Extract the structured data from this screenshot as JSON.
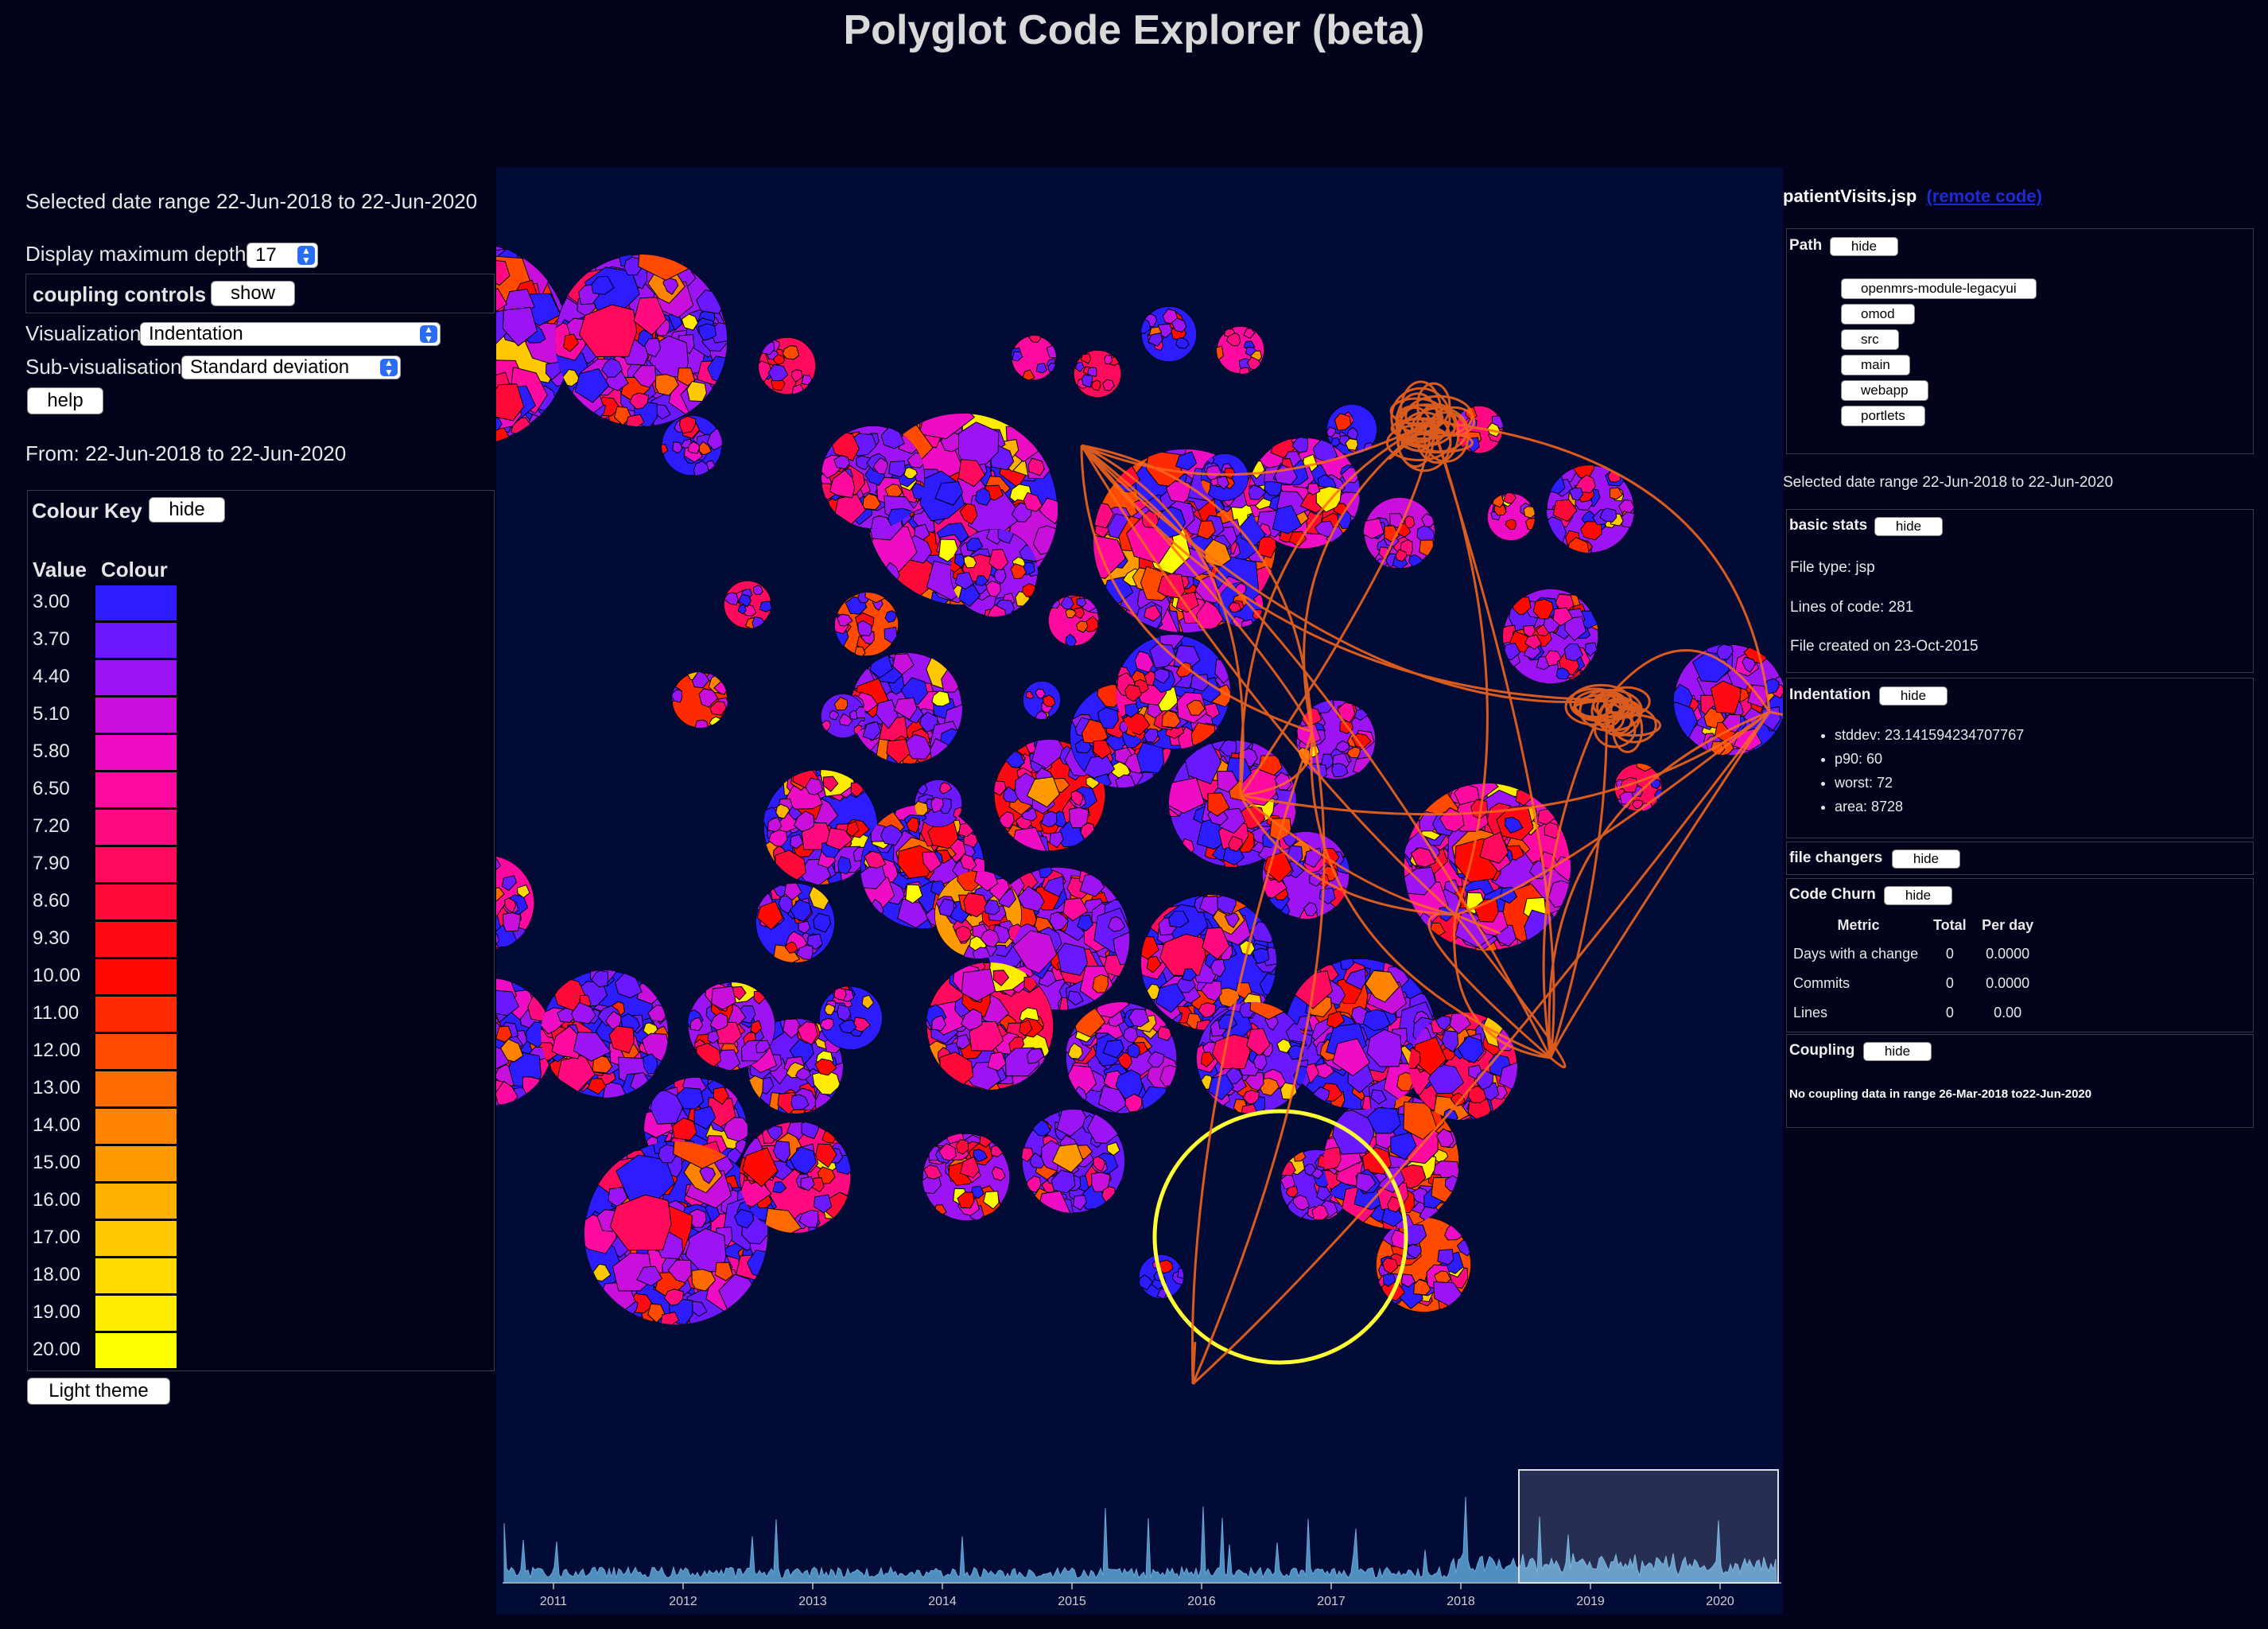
{
  "app": {
    "title": "Polyglot Code Explorer (beta)"
  },
  "left": {
    "selected_range": "Selected date range 22-Jun-2018 to 22-Jun-2020",
    "depth_label": "Display maximum depth:",
    "depth_value": "17",
    "coupling_label": "coupling controls",
    "coupling_button": "show",
    "visualization_label": "Visualization:",
    "visualization_value": "Indentation",
    "subvis_label": "Sub-visualisation:",
    "subvis_value": "Standard deviation",
    "help_button": "help",
    "from_text": "From: 22-Jun-2018 to 22-Jun-2020",
    "colour_key": {
      "title": "Colour Key",
      "hide_button": "hide",
      "value_header": "Value",
      "colour_header": "Colour",
      "rows": [
        {
          "value": "3.00",
          "color": "#2c1cff"
        },
        {
          "value": "3.70",
          "color": "#6a18ff"
        },
        {
          "value": "4.40",
          "color": "#9c14f4"
        },
        {
          "value": "5.10",
          "color": "#c80fdc"
        },
        {
          "value": "5.80",
          "color": "#ee0cc4"
        },
        {
          "value": "6.50",
          "color": "#ff0aa0"
        },
        {
          "value": "7.20",
          "color": "#ff0a80"
        },
        {
          "value": "7.90",
          "color": "#ff0a5c"
        },
        {
          "value": "8.60",
          "color": "#ff0a38"
        },
        {
          "value": "9.30",
          "color": "#ff0a14"
        },
        {
          "value": "10.00",
          "color": "#ff0a00"
        },
        {
          "value": "11.00",
          "color": "#ff2a00"
        },
        {
          "value": "12.00",
          "color": "#ff4a00"
        },
        {
          "value": "13.00",
          "color": "#ff6a00"
        },
        {
          "value": "14.00",
          "color": "#ff8200"
        },
        {
          "value": "15.00",
          "color": "#ff9a00"
        },
        {
          "value": "16.00",
          "color": "#ffb200"
        },
        {
          "value": "17.00",
          "color": "#ffc800"
        },
        {
          "value": "18.00",
          "color": "#ffda00"
        },
        {
          "value": "19.00",
          "color": "#ffec00"
        },
        {
          "value": "20.00",
          "color": "#ffff00"
        }
      ]
    },
    "theme_button": "Light theme"
  },
  "timeline": {
    "years": [
      "2011",
      "2012",
      "2013",
      "2014",
      "2015",
      "2016",
      "2017",
      "2018",
      "2019",
      "2020"
    ]
  },
  "right": {
    "file_name": "patientVisits.jsp",
    "remote_link": "(remote code)",
    "path_title": "Path",
    "path_hide": "hide",
    "path_items": [
      "openmrs-module-legacyui",
      "omod",
      "src",
      "main",
      "webapp",
      "portlets"
    ],
    "selected_range": "Selected date range 22-Jun-2018 to 22-Jun-2020",
    "basic_stats": {
      "title": "basic stats",
      "hide": "hide",
      "file_type": "File type: jsp",
      "lines": "Lines of code: 281",
      "created": "File created on 23-Oct-2015"
    },
    "indentation": {
      "title": "Indentation",
      "hide": "hide",
      "stddev": "stddev: 23.141594234707767",
      "p90": "p90: 60",
      "worst": "worst: 72",
      "area": "area: 8728"
    },
    "file_changers": {
      "title": "file changers",
      "hide": "hide"
    },
    "code_churn": {
      "title": "Code Churn",
      "hide": "hide",
      "headers": [
        "Metric",
        "Total",
        "Per day"
      ],
      "rows": [
        [
          "Days with a change",
          "0",
          "0.0000"
        ],
        [
          "Commits",
          "0",
          "0.0000"
        ],
        [
          "Lines",
          "0",
          "0.00"
        ]
      ]
    },
    "coupling": {
      "title": "Coupling",
      "hide": "hide",
      "message": "No coupling data in range 26-Mar-2018 to22-Jun-2020"
    }
  },
  "colors": {
    "background": "#02031a",
    "viz_background": "#020a36",
    "selection": "#ffff33",
    "coupling_lines": "#ff6a1a",
    "timeline_fill": "#4f8fbf"
  }
}
